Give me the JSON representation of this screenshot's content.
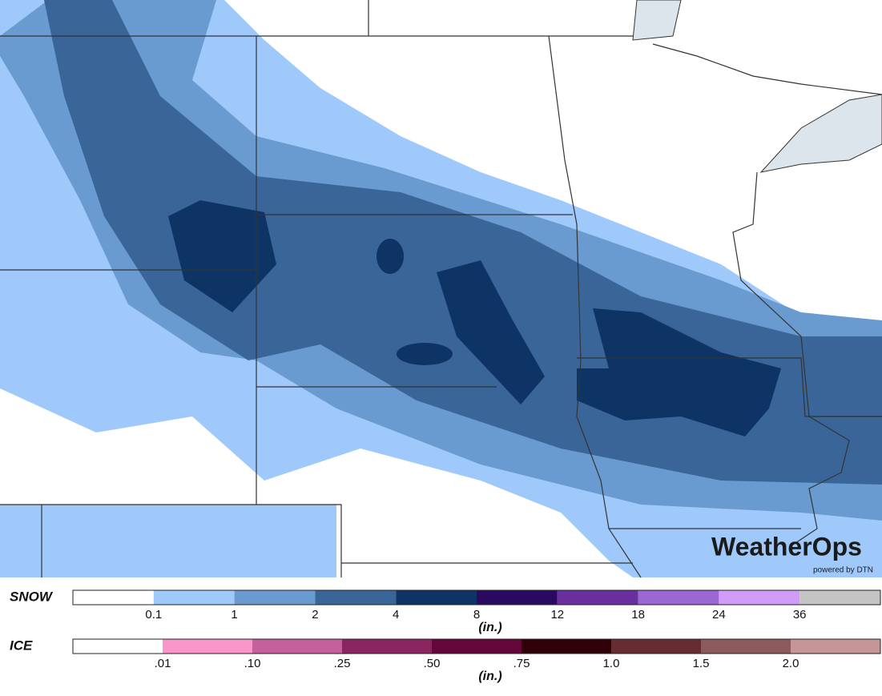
{
  "logo": {
    "name": "WeatherOps",
    "tagline": "powered by DTN"
  },
  "legends": [
    {
      "label": "SNOW",
      "unit": "(in.)",
      "colors": [
        "#ffffff",
        "#9fc9fb",
        "#6a9bd0",
        "#3a6599",
        "#0e3466",
        "#2a0a60",
        "#6a2f9e",
        "#9b67d2",
        "#cf9df8",
        "#c4c4c4"
      ],
      "ticks": [
        "0.1",
        "1",
        "2",
        "4",
        "8",
        "12",
        "18",
        "24",
        "36"
      ]
    },
    {
      "label": "ICE",
      "unit": "(in.)",
      "colors": [
        "#ffffff",
        "#f995c9",
        "#c5609a",
        "#8b2560",
        "#640639",
        "#300008",
        "#662c32",
        "#8d5a5c",
        "#c69596"
      ],
      "ticks": [
        ".01",
        ".10",
        ".25",
        ".50",
        ".75",
        "1.0",
        "1.5",
        "2.0"
      ]
    }
  ]
}
